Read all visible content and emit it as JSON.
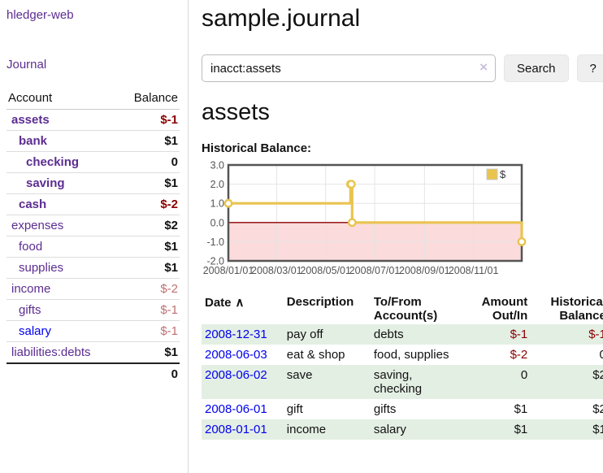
{
  "colors": {
    "link-purple": "#5C2D91",
    "link-blue": "#0000EE",
    "neg-strong": "#8B0000",
    "neg-soft": "#BE7171",
    "row-shade": "#E4EFE4",
    "button-bg": "#EFEFEF",
    "divider": "#D9D9D9",
    "text": "#111111"
  },
  "sidebar": {
    "app_title": "hledger-web",
    "nav": [
      {
        "label": "Journal"
      }
    ],
    "accounts_table": {
      "headers": [
        "Account",
        "Balance"
      ],
      "rows": [
        {
          "account": "assets",
          "indent": 0,
          "in_acct": true,
          "balance": "$-1",
          "balance_style": "neg-strong",
          "link_color": "purple"
        },
        {
          "account": "bank",
          "indent": 1,
          "in_acct": true,
          "balance": "$1",
          "balance_style": "pos",
          "link_color": "purple"
        },
        {
          "account": "checking",
          "indent": 2,
          "in_acct": true,
          "balance": "0",
          "balance_style": "pos",
          "link_color": "purple"
        },
        {
          "account": "saving",
          "indent": 2,
          "in_acct": true,
          "balance": "$1",
          "balance_style": "pos",
          "link_color": "purple"
        },
        {
          "account": "cash",
          "indent": 1,
          "in_acct": true,
          "balance": "$-2",
          "balance_style": "neg-strong",
          "link_color": "purple"
        },
        {
          "account": "expenses",
          "indent": 0,
          "in_acct": false,
          "balance": "$2",
          "balance_style": "pos",
          "link_color": "purple"
        },
        {
          "account": "food",
          "indent": 1,
          "in_acct": false,
          "balance": "$1",
          "balance_style": "pos",
          "link_color": "purple"
        },
        {
          "account": "supplies",
          "indent": 1,
          "in_acct": false,
          "balance": "$1",
          "balance_style": "pos",
          "link_color": "purple"
        },
        {
          "account": "income",
          "indent": 0,
          "in_acct": false,
          "balance": "$-2",
          "balance_style": "neg-soft",
          "link_color": "purple"
        },
        {
          "account": "gifts",
          "indent": 1,
          "in_acct": false,
          "balance": "$-1",
          "balance_style": "neg-soft",
          "link_color": "purple"
        },
        {
          "account": "salary",
          "indent": 1,
          "in_acct": false,
          "balance": "$-1",
          "balance_style": "neg-soft",
          "link_color": "blue"
        },
        {
          "account": "liabilities:debts",
          "indent": 0,
          "in_acct": false,
          "balance": "$1",
          "balance_style": "pos",
          "link_color": "purple"
        }
      ],
      "total": "0"
    }
  },
  "main": {
    "journal_title": "sample.journal",
    "search": {
      "value": "inacct:assets",
      "clear_icon": "×",
      "button_label": "Search",
      "help_label": "?"
    },
    "account_heading": "assets",
    "chart_heading": "Historical Balance:",
    "register_table": {
      "headers": [
        {
          "lines": "Date",
          "align": "left",
          "sort_arrow": "∧",
          "col": "col-date"
        },
        {
          "lines": "Description",
          "align": "left",
          "col": "col-desc"
        },
        {
          "lines": "To/From\nAccount(s)",
          "align": "left",
          "col": "col-tofrom"
        },
        {
          "lines": "Amount\nOut/In",
          "align": "right",
          "col": "col-amt"
        },
        {
          "lines": "Historical\nBalance",
          "align": "right",
          "col": "col-hbal"
        }
      ],
      "rows": [
        {
          "date": "2008-12-31",
          "description": "pay off",
          "accounts": "debts",
          "amount": "$-1",
          "amount_negative": true,
          "balance": "$-1",
          "balance_negative": true,
          "shaded": true
        },
        {
          "date": "2008-06-03",
          "description": "eat & shop",
          "accounts": "food, supplies",
          "amount": "$-2",
          "amount_negative": true,
          "balance": "0",
          "balance_negative": false,
          "shaded": false
        },
        {
          "date": "2008-06-02",
          "description": "save",
          "accounts": "saving, checking",
          "amount": "0",
          "amount_negative": false,
          "balance": "$2",
          "balance_negative": false,
          "shaded": true
        },
        {
          "date": "2008-06-01",
          "description": "gift",
          "accounts": "gifts",
          "amount": "$1",
          "amount_negative": false,
          "balance": "$2",
          "balance_negative": false,
          "shaded": false
        },
        {
          "date": "2008-01-01",
          "description": "income",
          "accounts": "salary",
          "amount": "$1",
          "amount_negative": false,
          "balance": "$1",
          "balance_negative": false,
          "shaded": true
        }
      ]
    }
  },
  "chart_data": {
    "type": "line",
    "title": "Historical Balance",
    "step": true,
    "series": [
      {
        "name": "$",
        "color": "#E9C44F",
        "points": [
          [
            "2008-01-01",
            1.0
          ],
          [
            "2008-06-01",
            2.0
          ],
          [
            "2008-06-02",
            2.0
          ],
          [
            "2008-06-03",
            0.0
          ],
          [
            "2008-12-31",
            -1.0
          ]
        ]
      }
    ],
    "x_range": [
      "2008-01-01",
      "2008-12-31"
    ],
    "ylim": [
      -2.0,
      3.0
    ],
    "y_ticks": [
      3.0,
      2.0,
      1.0,
      0.0,
      -1.0,
      -2.0
    ],
    "x_tick_dates": [
      "2008-01-01",
      "2008-03-01",
      "2008-05-01",
      "2008-07-01",
      "2008-09-01",
      "2008-11-01"
    ],
    "x_tick_labels": [
      "2008/01/01",
      "2008/03/01",
      "2008/05/01",
      "2008/07/01",
      "2008/09/01",
      "2008/11/01"
    ],
    "legend": {
      "label": "$",
      "swatch_color": "#E9C44F",
      "position": "top-right"
    },
    "grid": true,
    "grid_color": "#E4E4E4",
    "zero_line_color": "#8B0000",
    "negative_region_fill": "#FBDBDB",
    "border_color": "#545454",
    "tick_text_color": "#545454"
  }
}
